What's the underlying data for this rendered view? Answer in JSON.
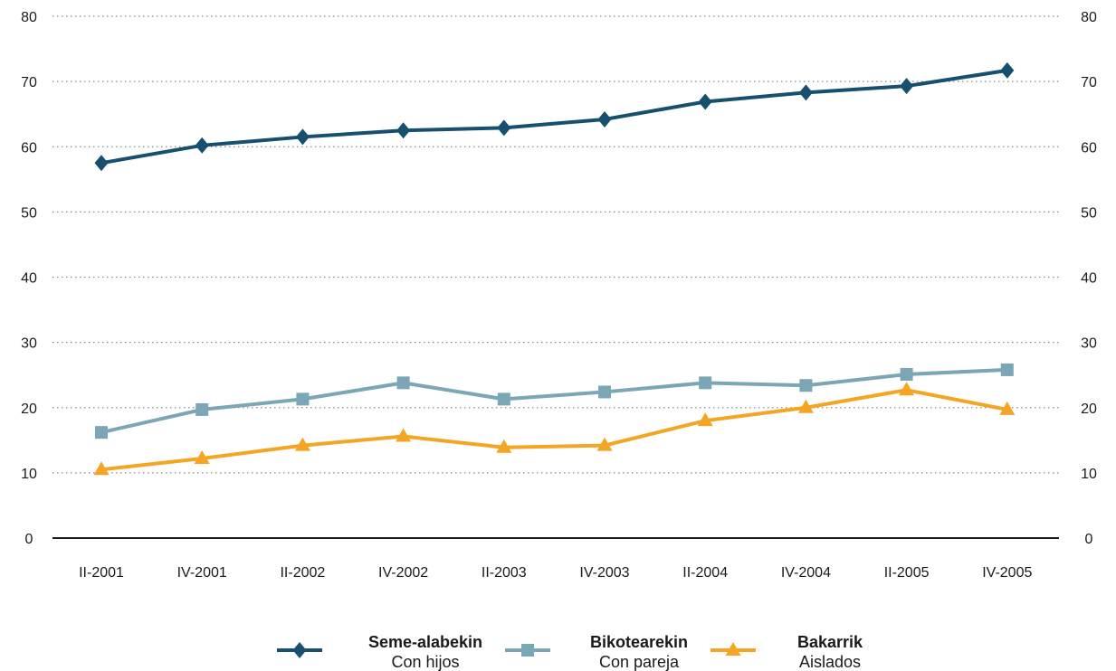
{
  "chart_data": {
    "type": "line",
    "title": "",
    "xlabel": "",
    "ylabel": "",
    "ylim": [
      0,
      80
    ],
    "yticks": [
      0,
      10,
      20,
      30,
      40,
      50,
      60,
      70,
      80
    ],
    "y_axis_both_sides": true,
    "grid": "horizontal-dotted",
    "legend_position": "bottom",
    "categories": [
      "II-2001",
      "IV-2001",
      "II-2002",
      "IV-2002",
      "II-2003",
      "IV-2003",
      "II-2004",
      "IV-2004",
      "II-2005",
      "IV-2005"
    ],
    "series": [
      {
        "name": "Seme-alabekin",
        "subname": "Con hijos",
        "color": "#16506e",
        "marker": "diamond",
        "values": [
          57.5,
          60.2,
          61.5,
          62.5,
          62.9,
          64.2,
          66.9,
          68.3,
          69.3,
          71.7
        ]
      },
      {
        "name": "Bikotearekin",
        "subname": "Con pareja",
        "color": "#7aa6b5",
        "marker": "square",
        "values": [
          16.2,
          19.7,
          21.3,
          23.8,
          21.3,
          22.4,
          23.8,
          23.4,
          25.1,
          25.8
        ]
      },
      {
        "name": "Bakarrik",
        "subname": "Aislados",
        "color": "#f5a524",
        "marker": "triangle",
        "values": [
          10.5,
          12.2,
          14.2,
          15.6,
          13.9,
          14.2,
          18.0,
          20.0,
          22.7,
          19.7
        ]
      }
    ]
  }
}
